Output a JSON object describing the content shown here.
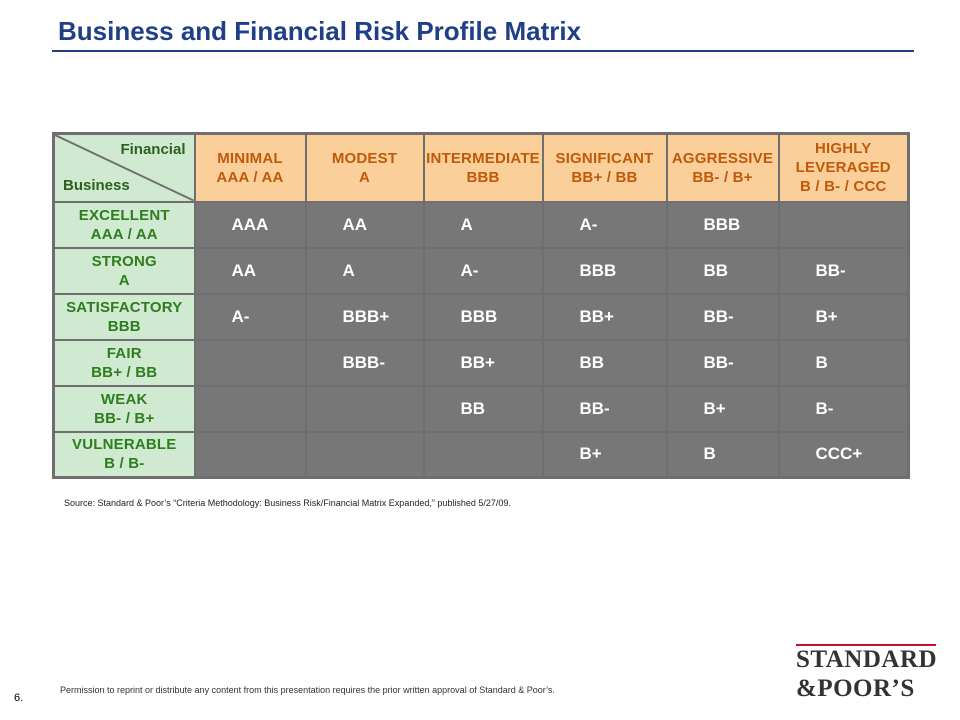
{
  "title": "Business and Financial Risk Profile Matrix",
  "corner": {
    "financial": "Financial",
    "business": "Business"
  },
  "financial_headers": [
    {
      "line1": "MINIMAL",
      "line2": "AAA / AA",
      "line3": ""
    },
    {
      "line1": "MODEST",
      "line2": "A",
      "line3": ""
    },
    {
      "line1": "INTERMEDIATE",
      "line2": "BBB",
      "line3": ""
    },
    {
      "line1": "SIGNIFICANT",
      "line2": "BB+ / BB",
      "line3": ""
    },
    {
      "line1": "AGGRESSIVE",
      "line2": "BB- / B+",
      "line3": ""
    },
    {
      "line1": "HIGHLY",
      "line2": "LEVERAGED",
      "line3": "B / B- / CCC"
    }
  ],
  "rows": [
    {
      "line1": "EXCELLENT",
      "line2": "AAA / AA",
      "cells": [
        "AAA",
        "AA",
        "A",
        "A-",
        "BBB",
        ""
      ]
    },
    {
      "line1": "STRONG",
      "line2": "A",
      "cells": [
        "AA",
        "A",
        "A-",
        "BBB",
        "BB",
        "BB-"
      ]
    },
    {
      "line1": "SATISFACTORY",
      "line2": "BBB",
      "cells": [
        "A-",
        "BBB+",
        "BBB",
        "BB+",
        "BB-",
        "B+"
      ]
    },
    {
      "line1": "FAIR",
      "line2": "BB+ / BB",
      "cells": [
        "",
        "BBB-",
        "BB+",
        "BB",
        "BB-",
        "B"
      ]
    },
    {
      "line1": "WEAK",
      "line2": "BB- / B+",
      "cells": [
        "",
        "",
        "BB",
        "BB-",
        "B+",
        "B-"
      ]
    },
    {
      "line1": "VULNERABLE",
      "line2": "B / B-",
      "cells": [
        "",
        "",
        "",
        "B+",
        "B",
        "CCC+"
      ]
    }
  ],
  "source": "Source: Standard & Poor’s “Criteria Methodology: Business Risk/Financial Matrix Expanded,” published 5/27/09.",
  "permission": "Permission to reprint or distribute any content from this presentation requires the prior written approval of Standard & Poor’s.",
  "page_number": "6.",
  "logo": {
    "line1": "STANDARD",
    "line2": "&POOR’S"
  },
  "colors": {
    "title": "#1f3f87",
    "financial_header_bg": "#fbcf9a",
    "financial_header_text": "#c05a0a",
    "business_header_bg": "#cfead0",
    "business_header_text": "#2e7d1e",
    "cell_bg": "#777777",
    "logo_rule": "#c8102e"
  }
}
